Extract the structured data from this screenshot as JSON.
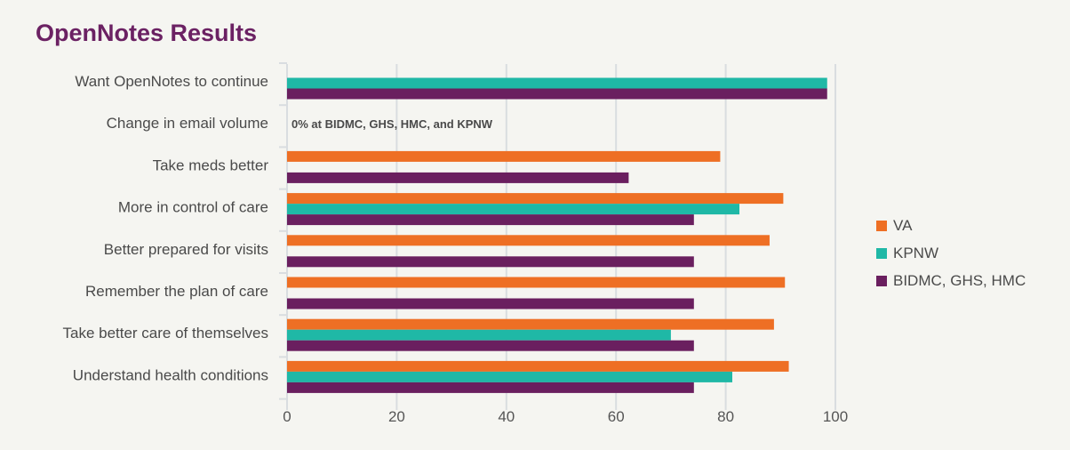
{
  "title": "OpenNotes Results",
  "colors": {
    "VA": "#ee6f24",
    "KPNW": "#1fb8a6",
    "BIDMC": "#6a1f5f"
  },
  "chart_data": {
    "type": "bar",
    "orientation": "horizontal",
    "title": "OpenNotes Results",
    "xlabel": "",
    "ylabel": "",
    "xlim": [
      0,
      100
    ],
    "xticks": [
      0,
      20,
      40,
      60,
      80,
      100
    ],
    "grid": true,
    "legend_position": "right",
    "categories": [
      "Want OpenNotes to continue",
      "Change in email volume",
      "Take meds better",
      "More in control of care",
      "Better prepared for visits",
      "Remember the plan of care",
      "Take better care of themselves",
      "Understand health conditions"
    ],
    "series": [
      {
        "name": "VA",
        "color": "#ee6f24",
        "values": [
          null,
          null,
          79,
          90.5,
          88,
          90.8,
          88.8,
          91.5
        ]
      },
      {
        "name": "KPNW",
        "color": "#1fb8a6",
        "values": [
          98.5,
          null,
          null,
          82.5,
          null,
          null,
          70,
          81.2
        ]
      },
      {
        "name": "BIDMC, GHS, HMC",
        "color": "#6a1f5f",
        "values": [
          98.5,
          null,
          62.3,
          74.2,
          74.2,
          74.2,
          74.2,
          74.2
        ]
      }
    ],
    "annotations": [
      {
        "category": "Change in email volume",
        "text": "0% at BIDMC, GHS, HMC, and KPNW"
      }
    ]
  }
}
